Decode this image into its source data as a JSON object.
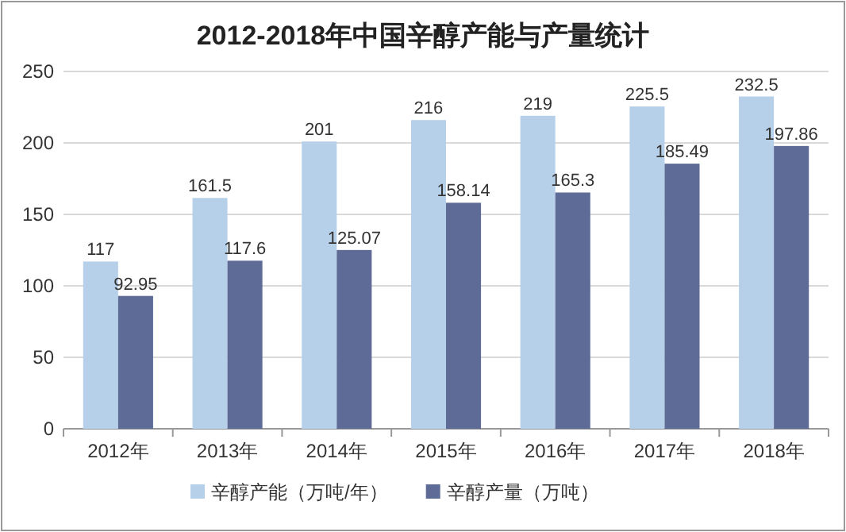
{
  "chart_data": {
    "type": "bar",
    "title": "2012-2018年中国辛醇产能与产量统计",
    "categories": [
      "2012年",
      "2013年",
      "2014年",
      "2015年",
      "2016年",
      "2017年",
      "2018年"
    ],
    "series": [
      {
        "name": "辛醇产能（万吨/年）",
        "color": "#b7d0ea",
        "values": [
          117,
          161.5,
          201,
          216,
          219,
          225.5,
          232.5
        ]
      },
      {
        "name": "辛醇产量（万吨）",
        "color": "#5d6b96",
        "values": [
          92.95,
          117.6,
          125.07,
          158.14,
          165.3,
          185.49,
          197.86
        ]
      }
    ],
    "ylim": [
      0,
      250
    ],
    "yticks": [
      0,
      50,
      100,
      150,
      200,
      250
    ],
    "grid": "y",
    "legend": "bottom",
    "data_labels": true
  }
}
